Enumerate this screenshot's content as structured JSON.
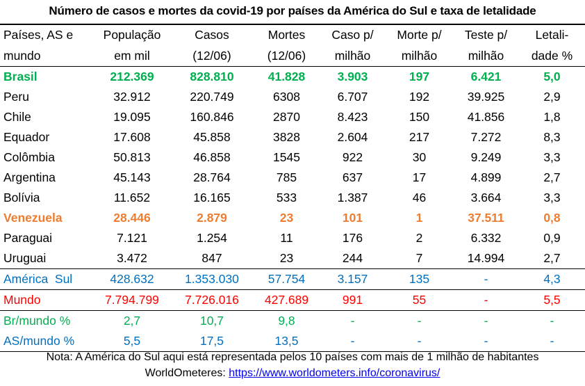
{
  "title": "Número de casos e mortes da covid-19 por países da América do Sul e taxa de letalidade",
  "colors": {
    "brasil": "#00b050",
    "venezuela": "#ed7d31",
    "america_sul": "#0070c0",
    "mundo": "#ff0000",
    "br_mundo": "#00b050",
    "as_mundo": "#0070c0"
  },
  "headers": [
    [
      "Países, AS e",
      "mundo"
    ],
    [
      "População",
      "em mil"
    ],
    [
      "Casos",
      "(12/06)"
    ],
    [
      "Mortes",
      "(12/06)"
    ],
    [
      "Caso p/",
      "milhão"
    ],
    [
      "Morte p/",
      "milhão"
    ],
    [
      "Teste p/",
      "milhão"
    ],
    [
      "Letali-",
      "dade %"
    ]
  ],
  "rows": [
    {
      "key": "brasil",
      "bold": true,
      "cells": [
        "Brasil",
        "212.369",
        "828.810",
        "41.828",
        "3.903",
        "197",
        "6.421",
        "5,0"
      ]
    },
    {
      "key": "",
      "cells": [
        "Peru",
        "32.912",
        "220.749",
        "6308",
        "6.707",
        "192",
        "39.925",
        "2,9"
      ]
    },
    {
      "key": "",
      "cells": [
        "Chile",
        "19.095",
        "160.846",
        "2870",
        "8.423",
        "150",
        "41.856",
        "1,8"
      ]
    },
    {
      "key": "",
      "cells": [
        "Equador",
        "17.608",
        "45.858",
        "3828",
        "2.604",
        "217",
        "7.272",
        "8,3"
      ]
    },
    {
      "key": "",
      "cells": [
        "Colômbia",
        "50.813",
        "46.858",
        "1545",
        "922",
        "30",
        "9.249",
        "3,3"
      ]
    },
    {
      "key": "",
      "cells": [
        "Argentina",
        "45.143",
        "28.764",
        "785",
        "637",
        "17",
        "4.899",
        "2,7"
      ]
    },
    {
      "key": "",
      "cells": [
        "Bolívia",
        "11.652",
        "16.165",
        "533",
        "1.387",
        "46",
        "3.664",
        "3,3"
      ]
    },
    {
      "key": "venezuela",
      "bold": true,
      "cells": [
        "Venezuela",
        "28.446",
        "2.879",
        "23",
        "101",
        "1",
        "37.511",
        "0,8"
      ]
    },
    {
      "key": "",
      "cells": [
        "Paraguai",
        "7.121",
        "1.254",
        "11",
        "176",
        "2",
        "6.332",
        "0,9"
      ]
    },
    {
      "key": "",
      "cells": [
        "Uruguai",
        "3.472",
        "847",
        "23",
        "244",
        "7",
        "14.994",
        "2,7"
      ]
    },
    {
      "key": "america_sul",
      "sep": true,
      "cells": [
        "América  Sul",
        "428.632",
        "1.353.030",
        "57.754",
        "3.157",
        "135",
        "-",
        "4,3"
      ]
    },
    {
      "key": "mundo",
      "sep": true,
      "cells": [
        "Mundo",
        "7.794.799",
        "7.726.016",
        "427.689",
        "991",
        "55",
        "-",
        "5,5"
      ]
    },
    {
      "key": "br_mundo",
      "sep": true,
      "cells": [
        "Br/mundo %",
        "2,7",
        "10,7",
        "9,8",
        "-",
        "-",
        "-",
        "-"
      ]
    },
    {
      "key": "as_mundo",
      "bottom": true,
      "cells": [
        "AS/mundo %",
        "5,5",
        "17,5",
        "13,5",
        "-",
        "-",
        "-",
        "-"
      ]
    }
  ],
  "note": "Nota: A América do Sul aqui está representada pelos 10 países com mais de 1 milhão de habitantes",
  "source_label": "WorldOmeteres: ",
  "source_link": "https://www.worldometers.info/coronavirus/"
}
